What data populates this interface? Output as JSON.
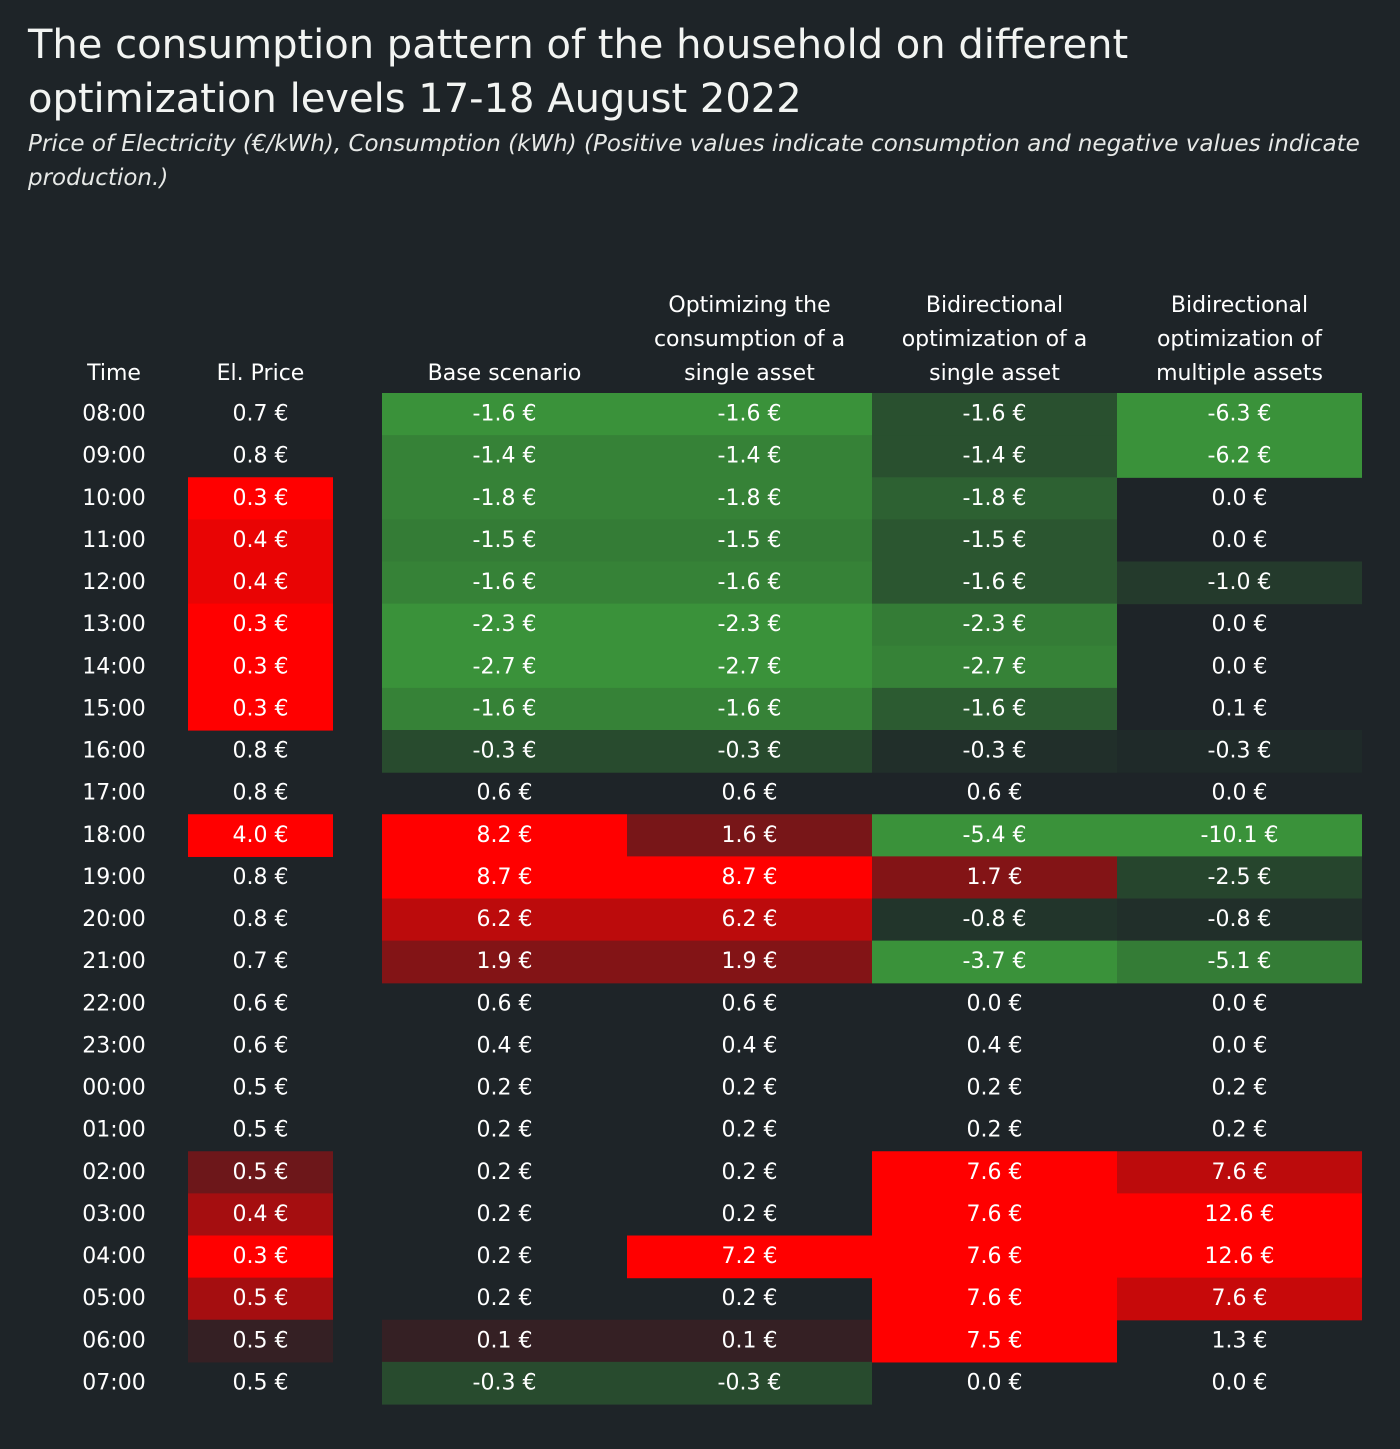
{
  "title": "The consumption pattern of the household on different optimization levels 17-18 August 2022",
  "subtitle": "Price of Electricity (€/kWh), Consumption (kWh) (Positive values indicate consumption and negative values indicate production.)",
  "colors": {
    "background": "#1e2428",
    "high": "#ff0000",
    "low": "#3a923a",
    "neutral": "#1e2428"
  },
  "chart_data": {
    "type": "heatmap",
    "currency": "€",
    "columns": [
      {
        "key": "time",
        "header": [
          "Time"
        ]
      },
      {
        "key": "price",
        "header": [
          "El. Price"
        ]
      },
      {
        "key": "base",
        "header": [
          "Base scenario"
        ]
      },
      {
        "key": "single",
        "header": [
          "Optimizing the",
          "consumption of a",
          "single asset"
        ]
      },
      {
        "key": "bi_single",
        "header": [
          "Bidirectional",
          "optimization of a",
          "single asset"
        ]
      },
      {
        "key": "bi_multi",
        "header": [
          "Bidirectional",
          "optimization of",
          "multiple assets"
        ]
      }
    ],
    "times": [
      "08:00",
      "09:00",
      "10:00",
      "11:00",
      "12:00",
      "13:00",
      "14:00",
      "15:00",
      "16:00",
      "17:00",
      "18:00",
      "19:00",
      "20:00",
      "21:00",
      "22:00",
      "23:00",
      "00:00",
      "01:00",
      "02:00",
      "03:00",
      "04:00",
      "05:00",
      "06:00",
      "07:00"
    ],
    "series": [
      {
        "key": "price",
        "values": [
          0.7,
          0.8,
          0.3,
          0.4,
          0.4,
          0.3,
          0.3,
          0.3,
          0.8,
          0.8,
          4.0,
          0.8,
          0.8,
          0.7,
          0.6,
          0.6,
          0.5,
          0.5,
          0.5,
          0.4,
          0.3,
          0.5,
          0.5,
          0.5
        ]
      },
      {
        "key": "base",
        "values": [
          -1.6,
          -1.4,
          -1.8,
          -1.5,
          -1.6,
          -2.3,
          -2.7,
          -1.6,
          -0.3,
          0.6,
          8.2,
          8.7,
          6.2,
          1.9,
          0.6,
          0.4,
          0.2,
          0.2,
          0.2,
          0.2,
          0.2,
          0.2,
          0.1,
          -0.3
        ]
      },
      {
        "key": "single",
        "values": [
          -1.6,
          -1.4,
          -1.8,
          -1.5,
          -1.6,
          -2.3,
          -2.7,
          -1.6,
          -0.3,
          0.6,
          1.6,
          8.7,
          6.2,
          1.9,
          0.6,
          0.4,
          0.2,
          0.2,
          0.2,
          0.2,
          7.2,
          0.2,
          0.1,
          -0.3
        ]
      },
      {
        "key": "bi_single",
        "values": [
          -1.6,
          -1.4,
          -1.8,
          -1.5,
          -1.6,
          -2.3,
          -2.7,
          -1.6,
          -0.3,
          0.6,
          -5.4,
          1.7,
          -0.8,
          -3.7,
          0.0,
          0.4,
          0.2,
          0.2,
          7.6,
          7.6,
          7.6,
          7.6,
          7.5,
          0.0
        ]
      },
      {
        "key": "bi_multi",
        "values": [
          -6.3,
          -6.2,
          0.0,
          0.0,
          -1.0,
          0.0,
          0.0,
          0.1,
          -0.3,
          0.0,
          -10.1,
          -2.5,
          -0.8,
          -5.1,
          0.0,
          0.0,
          0.2,
          0.2,
          7.6,
          12.6,
          12.6,
          7.6,
          1.3,
          0.0
        ]
      }
    ],
    "color_intensity": {
      "price": [
        0,
        0,
        1,
        0.9,
        0.9,
        1,
        1,
        1,
        0,
        0,
        1,
        0,
        0,
        0,
        0,
        0,
        0,
        0,
        0.35,
        0.6,
        1,
        0.6,
        0.1,
        0
      ],
      "base": [
        1,
        0.85,
        0.85,
        0.8,
        0.85,
        1,
        1,
        0.85,
        0.35,
        0,
        1,
        1,
        0.7,
        0.45,
        0,
        0,
        0,
        0,
        0,
        0,
        0,
        0,
        0.1,
        0.35
      ],
      "single": [
        1,
        0.85,
        0.85,
        0.8,
        0.85,
        1,
        1,
        0.85,
        0.35,
        0,
        0.4,
        1,
        0.7,
        0.45,
        0,
        0,
        0,
        0,
        0,
        0,
        1,
        0,
        0.1,
        0.35
      ],
      "bi_single": [
        0.4,
        0.4,
        0.55,
        0.45,
        0.45,
        0.8,
        0.85,
        0.5,
        0.1,
        0,
        1,
        0.45,
        0.15,
        1,
        0,
        0,
        0,
        0,
        1,
        1,
        1,
        1,
        1,
        0
      ],
      "bi_multi": [
        1,
        1,
        0,
        0,
        0.2,
        0,
        0,
        0,
        0.05,
        0,
        1,
        0.3,
        0.1,
        0.8,
        0,
        0,
        0,
        0,
        0.7,
        1,
        1,
        0.75,
        0,
        0
      ]
    }
  }
}
